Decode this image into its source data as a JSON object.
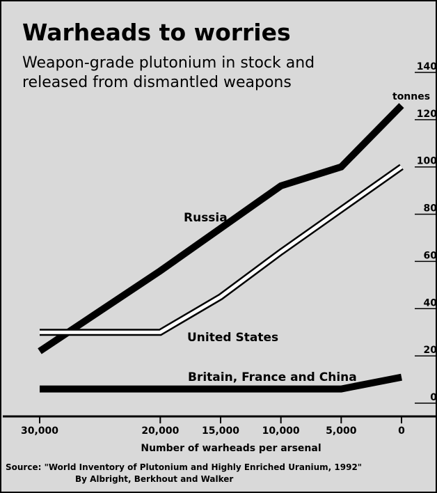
{
  "chart_data": {
    "type": "line",
    "title": "Warheads to worries",
    "subtitle_lines": [
      "Weapon-grade plutonium in stock and",
      "released from dismantled weapons"
    ],
    "xlabel": "Number of warheads per arsenal",
    "ylabel_unit": "tonnes",
    "x_reversed": true,
    "xlim": [
      30000,
      0
    ],
    "ylim": [
      0,
      140
    ],
    "x_ticks": [
      {
        "value": 30000,
        "label": "30,000"
      },
      {
        "value": 20000,
        "label": "20,000"
      },
      {
        "value": 15000,
        "label": "15,000"
      },
      {
        "value": 10000,
        "label": "10,000"
      },
      {
        "value": 5000,
        "label": "5,000"
      },
      {
        "value": 0,
        "label": "0"
      }
    ],
    "y_ticks": [
      {
        "value": 0,
        "label": "0"
      },
      {
        "value": 20,
        "label": "20"
      },
      {
        "value": 40,
        "label": "40"
      },
      {
        "value": 60,
        "label": "60"
      },
      {
        "value": 80,
        "label": "80"
      },
      {
        "value": 100,
        "label": "100"
      },
      {
        "value": 120,
        "label": "120"
      },
      {
        "value": 140,
        "label": "140"
      }
    ],
    "series": [
      {
        "name": "Russia",
        "style": "thick-black",
        "points": [
          [
            30000,
            22
          ],
          [
            20000,
            56
          ],
          [
            15000,
            74
          ],
          [
            10000,
            92
          ],
          [
            5000,
            100
          ],
          [
            0,
            126
          ]
        ]
      },
      {
        "name": "United States",
        "style": "white-outlined",
        "points": [
          [
            30000,
            30
          ],
          [
            20000,
            30
          ],
          [
            15000,
            45
          ],
          [
            10000,
            64
          ],
          [
            5000,
            82
          ],
          [
            0,
            100
          ]
        ]
      },
      {
        "name": "Britain, France and China",
        "style": "thick-black",
        "points": [
          [
            30000,
            6
          ],
          [
            20000,
            6
          ],
          [
            5000,
            6
          ],
          [
            0,
            11
          ]
        ]
      }
    ],
    "source_lines": [
      "Source: \"World Inventory of Plutonium and Highly Enriched Uranium, 1992\"",
      "By Albright, Berkhout and Walker"
    ],
    "colors": {
      "background": "#d9d9d9",
      "line": "#000000",
      "us_fill": "#ffffff"
    }
  }
}
